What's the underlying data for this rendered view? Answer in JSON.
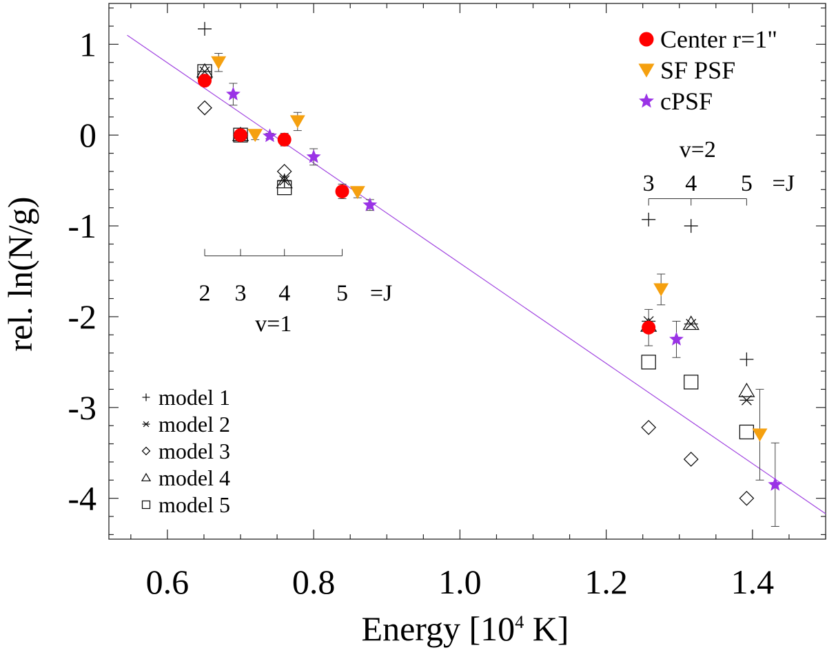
{
  "chart_data": {
    "type": "scatter",
    "title": "",
    "xlabel": "Energy [10",
    "xlabel_sup": "4",
    "xlabel_suffix": " K]",
    "ylabel": "rel. ln(N/g)",
    "xlim": [
      0.52,
      1.5
    ],
    "ylim": [
      -4.45,
      1.45
    ],
    "xticks": [
      0.6,
      0.8,
      1.0,
      1.2,
      1.4
    ],
    "xtick_labels": [
      "0.6",
      "0.8",
      "1.0",
      "1.2",
      "1.4"
    ],
    "yticks": [
      1,
      0,
      -1,
      -2,
      -3,
      -4
    ],
    "ytick_labels": [
      "1",
      "0",
      "-1",
      "-2",
      "-3",
      "-4"
    ],
    "fit_line": {
      "x": [
        0.545,
        1.5
      ],
      "y": [
        1.1,
        -4.17
      ],
      "color": "#a044e0"
    },
    "series": [
      {
        "name": "Center r=1\"",
        "marker": "circle",
        "color": "#ff0000",
        "x": [
          0.651,
          0.7,
          0.76,
          0.839,
          1.258
        ],
        "y": [
          0.6,
          0.0,
          -0.05,
          -0.62,
          -2.12
        ],
        "err": [
          0.06,
          0.04,
          0.07,
          0.08,
          0.2
        ]
      },
      {
        "name": "SF PSF",
        "marker": "triangle-down",
        "color": "#f5a00f",
        "x": [
          0.67,
          0.72,
          0.778,
          0.86,
          1.275,
          1.41
        ],
        "y": [
          0.8,
          0.0,
          0.15,
          -0.63,
          -1.7,
          -3.3
        ],
        "err": [
          0.1,
          0.05,
          0.1,
          0.06,
          0.17,
          0.5
        ]
      },
      {
        "name": "cPSF",
        "marker": "star",
        "color": "#9a33e6",
        "x": [
          0.69,
          0.74,
          0.8,
          0.877,
          1.296,
          1.431
        ],
        "y": [
          0.45,
          -0.01,
          -0.24,
          -0.77,
          -2.25,
          -3.85
        ],
        "err": [
          0.12,
          0.03,
          0.09,
          0.06,
          0.2,
          0.46
        ]
      },
      {
        "name": "model 1",
        "marker": "plus",
        "color": "#000000",
        "x": [
          0.651,
          0.7,
          0.76,
          1.258,
          1.316,
          1.392
        ],
        "y": [
          1.17,
          0.0,
          -0.5,
          -0.93,
          -1.0,
          -2.47
        ]
      },
      {
        "name": "model 2",
        "marker": "asterisk",
        "color": "#000000",
        "x": [
          0.651,
          0.7,
          0.76,
          1.258,
          1.316,
          1.392
        ],
        "y": [
          0.7,
          0.0,
          -0.5,
          -2.05,
          -2.08,
          -2.92
        ]
      },
      {
        "name": "model 3",
        "marker": "diamond",
        "color": "#000000",
        "x": [
          0.651,
          0.7,
          0.76,
          1.258,
          1.316,
          1.392
        ],
        "y": [
          0.3,
          0.0,
          -0.4,
          -3.22,
          -3.57,
          -4.0
        ]
      },
      {
        "name": "model 4",
        "marker": "triangle-up",
        "color": "#000000",
        "x": [
          0.651,
          0.7,
          0.76,
          1.258,
          1.316,
          1.392
        ],
        "y": [
          0.7,
          0.0,
          -0.52,
          -2.1,
          -2.08,
          -2.82
        ]
      },
      {
        "name": "model 5",
        "marker": "square",
        "color": "#000000",
        "x": [
          0.651,
          0.7,
          0.76,
          1.258,
          1.316,
          1.392
        ],
        "y": [
          0.7,
          0.0,
          -0.58,
          -2.5,
          -2.72,
          -3.27
        ]
      }
    ],
    "annotations": [
      {
        "id": "v1",
        "level_label": "v=1",
        "j_suffix": "=J",
        "j_labels": [
          "2",
          "3",
          "4",
          "5"
        ],
        "j_x": [
          0.651,
          0.7,
          0.76,
          0.839
        ],
        "bracket_y": -1.33,
        "label_y": -1.73,
        "level_y": -2.07,
        "suffix_x": 0.877
      },
      {
        "id": "v2",
        "level_label": "v=2",
        "j_suffix": "=J",
        "j_labels": [
          "3",
          "4",
          "5"
        ],
        "j_x": [
          1.258,
          1.316,
          1.392
        ],
        "bracket_y": -0.7,
        "label_y": -0.52,
        "level_y": -0.15,
        "suffix_x": 1.427
      }
    ],
    "legend_top": {
      "position": "top-right",
      "entries": [
        "Center r=1\"",
        "SF PSF",
        "cPSF"
      ]
    },
    "legend_bottom": {
      "position": "bottom-left",
      "entries": [
        "model 1",
        "model 2",
        "model 3",
        "model 4",
        "model 5"
      ]
    }
  }
}
